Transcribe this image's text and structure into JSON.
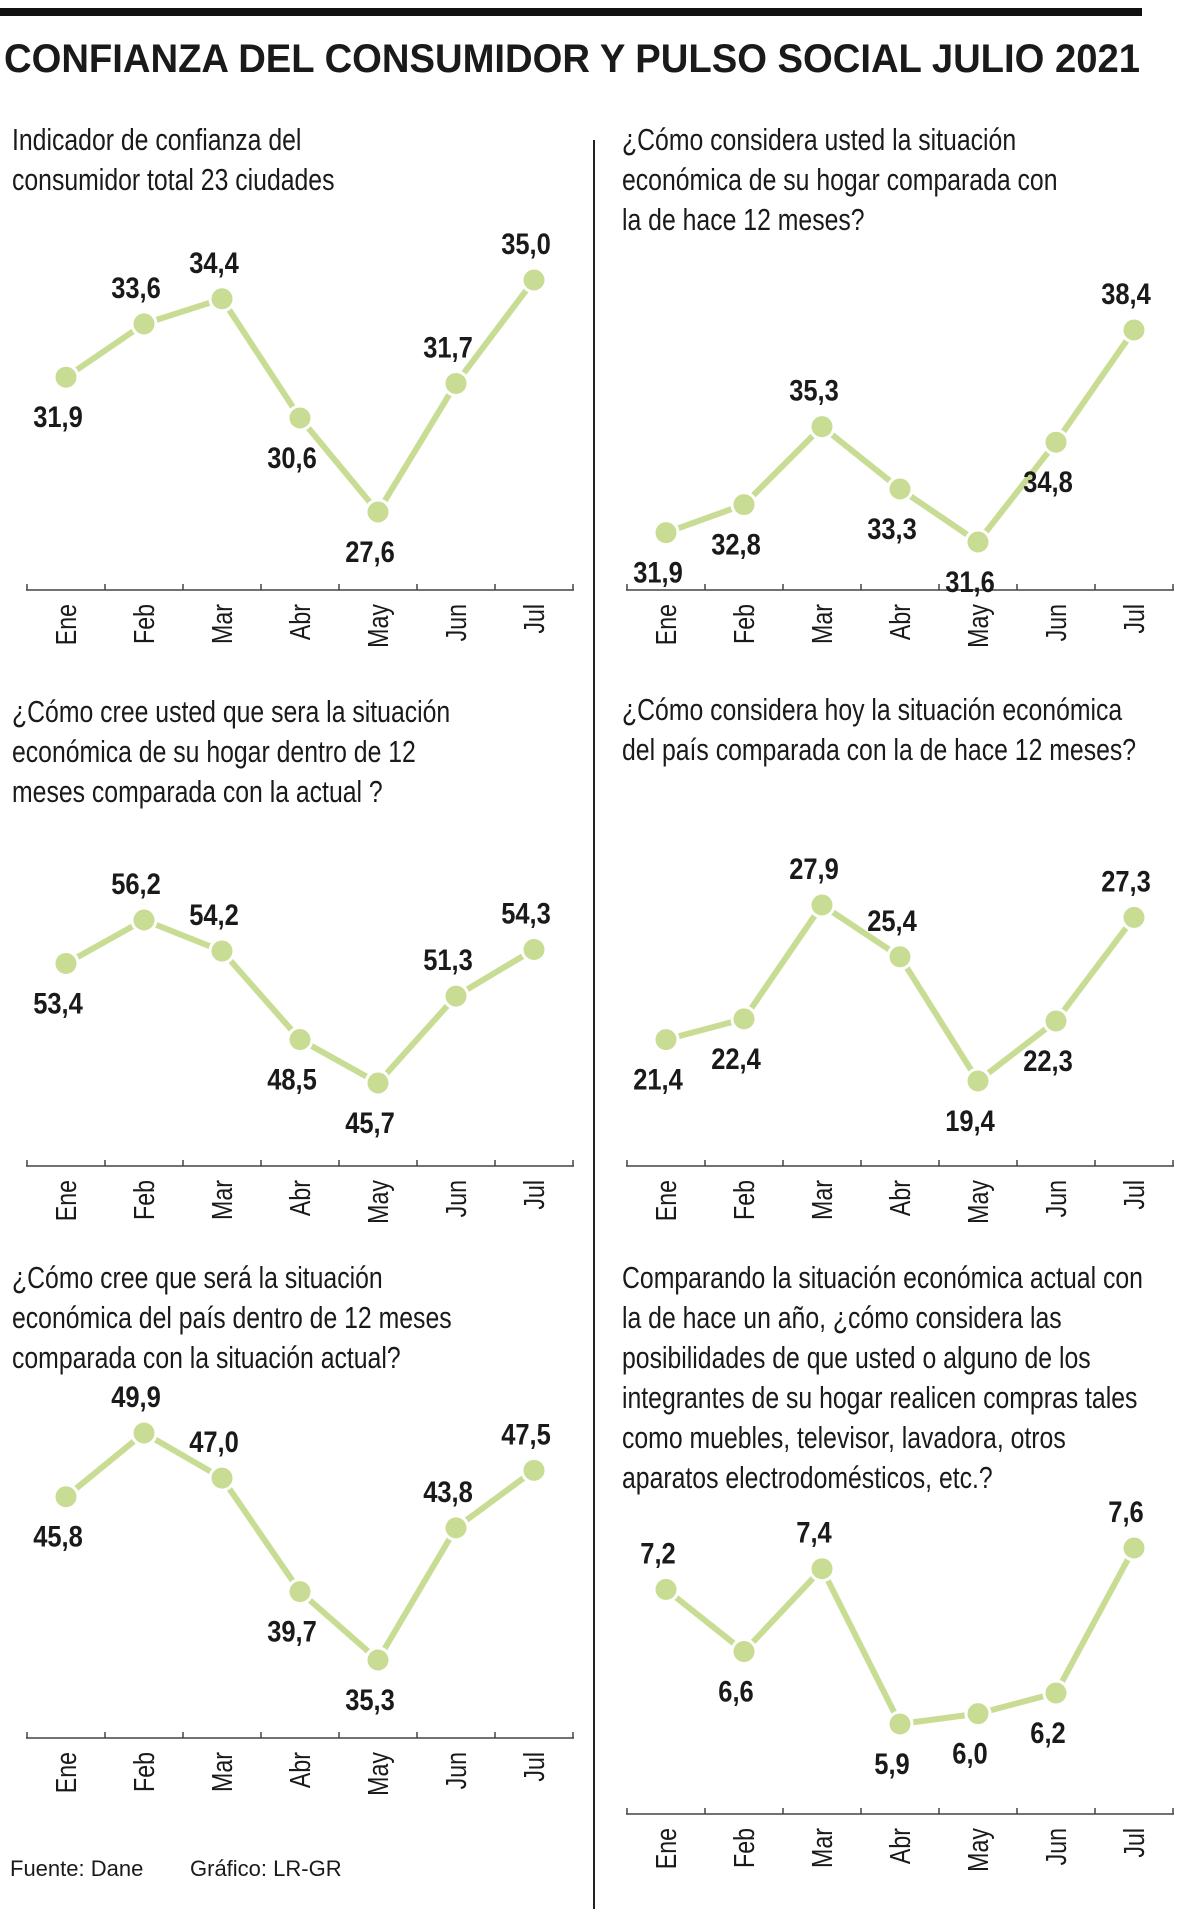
{
  "title": "CONFIANZA DEL CONSUMIDOR Y PULSO SOCIAL JULIO 2021",
  "source": "Fuente: Dane",
  "credit": "Gráfico: LR-GR",
  "chart_data": [
    {
      "type": "line",
      "title": [
        "Indicador de confianza del",
        "consumidor  total 23 ciudades"
      ],
      "categories": [
        "Ene",
        "Feb",
        "Mar",
        "Abr",
        "May",
        "Jun",
        "Jul"
      ],
      "values": [
        31.9,
        33.6,
        34.4,
        30.6,
        27.6,
        31.7,
        35.0
      ],
      "value_labels": [
        "31,9",
        "33,6",
        "34,4",
        "30,6",
        "27,6",
        "31,7",
        "35,0"
      ],
      "color": "#c9dc94"
    },
    {
      "type": "line",
      "title": [
        "¿Cómo considera usted la situación",
        "económica de su hogar comparada con",
        "la de hace 12 meses?"
      ],
      "categories": [
        "Ene",
        "Feb",
        "Mar",
        "Abr",
        "May",
        "Jun",
        "Jul"
      ],
      "values": [
        31.9,
        32.8,
        35.3,
        33.3,
        31.6,
        34.8,
        38.4
      ],
      "value_labels": [
        "31,9",
        "32,8",
        "35,3",
        "33,3",
        "31,6",
        "34,8",
        "38,4"
      ],
      "color": "#c9dc94"
    },
    {
      "type": "line",
      "title": [
        "¿Cómo cree usted que sera la situación",
        "económica de su hogar dentro de 12",
        "meses comparada con la actual ?"
      ],
      "categories": [
        "Ene",
        "Feb",
        "Mar",
        "Abr",
        "May",
        "Jun",
        "Jul"
      ],
      "values": [
        53.4,
        56.2,
        54.2,
        48.5,
        45.7,
        51.3,
        54.3
      ],
      "value_labels": [
        "53,4",
        "56,2",
        "54,2",
        "48,5",
        "45,7",
        "51,3",
        "54,3"
      ],
      "color": "#c9dc94"
    },
    {
      "type": "line",
      "title": [
        "¿Cómo considera hoy la situación económica",
        "del país comparada con la de hace 12 meses?"
      ],
      "categories": [
        "Ene",
        "Feb",
        "Mar",
        "Abr",
        "May",
        "Jun",
        "Jul"
      ],
      "values": [
        21.4,
        22.4,
        27.9,
        25.4,
        19.4,
        22.3,
        27.3
      ],
      "value_labels": [
        "21,4",
        "22,4",
        "27,9",
        "25,4",
        "19,4",
        "22,3",
        "27,3"
      ],
      "color": "#c9dc94"
    },
    {
      "type": "line",
      "title": [
        "¿Cómo cree que será la situación",
        "económica del país dentro de 12 meses",
        "comparada con la situación actual?"
      ],
      "categories": [
        "Ene",
        "Feb",
        "Mar",
        "Abr",
        "May",
        "Jun",
        "Jul"
      ],
      "values": [
        45.8,
        49.9,
        47.0,
        39.7,
        35.3,
        43.8,
        47.5
      ],
      "value_labels": [
        "45,8",
        "49,9",
        "47,0",
        "39,7",
        "35,3",
        "43,8",
        "47,5"
      ],
      "color": "#c9dc94"
    },
    {
      "type": "line",
      "title": [
        "Comparando la situación económica actual con",
        "la de hace un año, ¿cómo considera las",
        "posibilidades de que usted o alguno de los",
        "integrantes de su hogar realicen compras tales",
        "como muebles, televisor, lavadora, otros",
        "aparatos electrodomésticos, etc.?"
      ],
      "categories": [
        "Ene",
        "Feb",
        "Mar",
        "Abr",
        "May",
        "Jun",
        "Jul"
      ],
      "values": [
        7.2,
        6.6,
        7.4,
        5.9,
        6.0,
        6.2,
        7.6
      ],
      "value_labels": [
        "7,2",
        "6,6",
        "7,4",
        "5,9",
        "6,0",
        "6,2",
        "7,6"
      ],
      "color": "#c9dc94"
    }
  ]
}
